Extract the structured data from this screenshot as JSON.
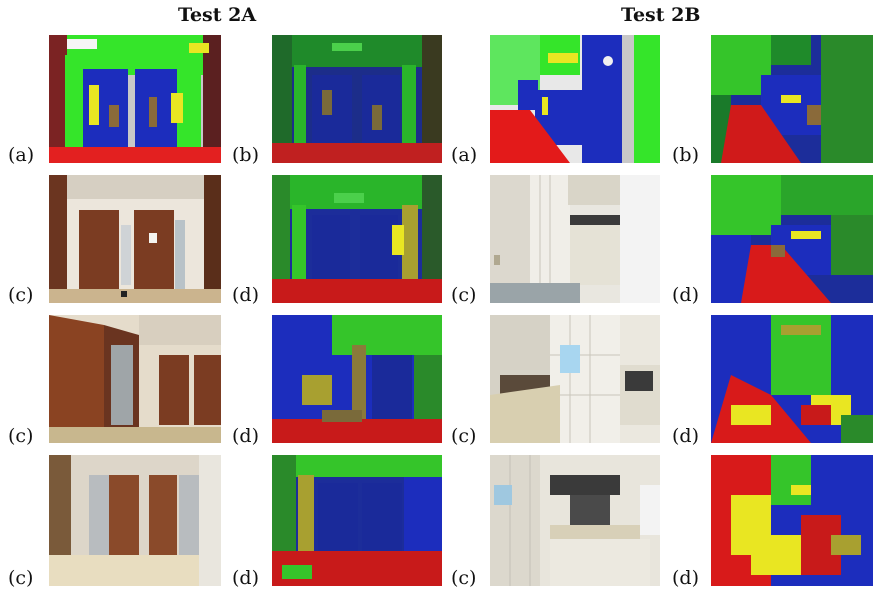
{
  "headings": {
    "left": "Test 2A",
    "right": "Test 2B"
  },
  "labels": {
    "a": "(a)",
    "b": "(b)",
    "c": "(c)",
    "d": "(d)"
  }
}
